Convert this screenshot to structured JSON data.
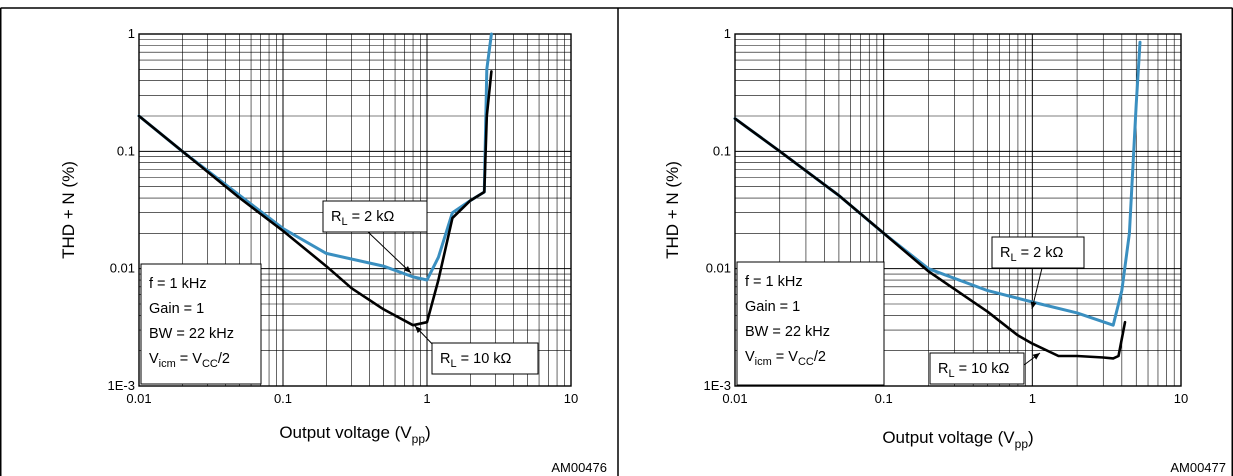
{
  "chart_data": [
    {
      "type": "line",
      "figure_id": "AM00476",
      "xlabel": {
        "main": "Output voltage (V",
        "sub": "pp",
        "close": ")"
      },
      "ylabel": "THD + N (%)",
      "xscale": "log",
      "yscale": "log",
      "xlim": [
        0.01,
        10
      ],
      "ylim": [
        0.001,
        1
      ],
      "x_tick_labels": [
        "0.01",
        "0.1",
        "1",
        "10"
      ],
      "y_tick_labels": [
        "1E-3",
        "0.01",
        "0.1",
        "1"
      ],
      "grid": true,
      "conditions": [
        {
          "main": "f = 1 kHz"
        },
        {
          "main": "Gain = 1"
        },
        {
          "main": "BW = 22 kHz"
        },
        {
          "main": "V",
          "sub": "icm",
          "rest": " = V",
          "sub2": "CC",
          "rest2": "/2"
        }
      ],
      "series": [
        {
          "label_main": "R",
          "label_sub": "L",
          "label_rest": " = 2 kΩ",
          "color": "#3a8fc0",
          "x": [
            0.01,
            0.02,
            0.05,
            0.1,
            0.2,
            0.5,
            0.8,
            1.0,
            1.2,
            1.5,
            2.0,
            2.5,
            2.6,
            2.8
          ],
          "y": [
            0.2,
            0.1,
            0.042,
            0.022,
            0.0135,
            0.0105,
            0.0085,
            0.008,
            0.0125,
            0.03,
            0.038,
            0.045,
            0.5,
            1.0
          ]
        },
        {
          "label_main": "R",
          "label_sub": "L",
          "label_rest": " = 10 kΩ",
          "color": "#000000",
          "x": [
            0.01,
            0.02,
            0.05,
            0.1,
            0.2,
            0.3,
            0.5,
            0.8,
            1.0,
            1.2,
            1.5,
            2.0,
            2.5,
            2.6,
            2.8
          ],
          "y": [
            0.2,
            0.1,
            0.04,
            0.021,
            0.0105,
            0.0068,
            0.0045,
            0.0033,
            0.0035,
            0.008,
            0.027,
            0.038,
            0.045,
            0.2,
            0.48
          ]
        }
      ]
    },
    {
      "type": "line",
      "figure_id": "AM00477",
      "xlabel": {
        "main": "Output voltage (V",
        "sub": "pp",
        "close": ")"
      },
      "ylabel": "THD + N (%)",
      "xscale": "log",
      "yscale": "log",
      "xlim": [
        0.01,
        10
      ],
      "ylim": [
        0.001,
        1
      ],
      "x_tick_labels": [
        "0.01",
        "0.1",
        "1",
        "10"
      ],
      "y_tick_labels": [
        "1E-3",
        "0.01",
        "0.1",
        "1"
      ],
      "grid": true,
      "conditions": [
        {
          "main": "f = 1 kHz"
        },
        {
          "main": "Gain = 1"
        },
        {
          "main": "BW = 22 kHz"
        },
        {
          "main": "V",
          "sub": "icm",
          "rest": " = V",
          "sub2": "CC",
          "rest2": "/2"
        }
      ],
      "series": [
        {
          "label_main": "R",
          "label_sub": "L",
          "label_rest": " = 2 kΩ",
          "color": "#3a8fc0",
          "x": [
            0.01,
            0.02,
            0.05,
            0.1,
            0.2,
            0.5,
            1.0,
            2.0,
            3.5,
            4.0,
            4.5,
            5.0,
            5.3
          ],
          "y": [
            0.19,
            0.1,
            0.042,
            0.02,
            0.01,
            0.0065,
            0.0052,
            0.0042,
            0.0033,
            0.0065,
            0.02,
            0.25,
            0.85
          ]
        },
        {
          "label_main": "R",
          "label_sub": "L",
          "label_rest": " = 10 kΩ",
          "color": "#000000",
          "x": [
            0.01,
            0.02,
            0.05,
            0.1,
            0.2,
            0.5,
            0.8,
            1.0,
            1.5,
            2.0,
            3.0,
            3.5,
            3.8,
            4.2
          ],
          "y": [
            0.19,
            0.1,
            0.042,
            0.02,
            0.0095,
            0.0043,
            0.0027,
            0.0023,
            0.0018,
            0.0018,
            0.00175,
            0.00172,
            0.0018,
            0.0035
          ]
        }
      ]
    }
  ]
}
